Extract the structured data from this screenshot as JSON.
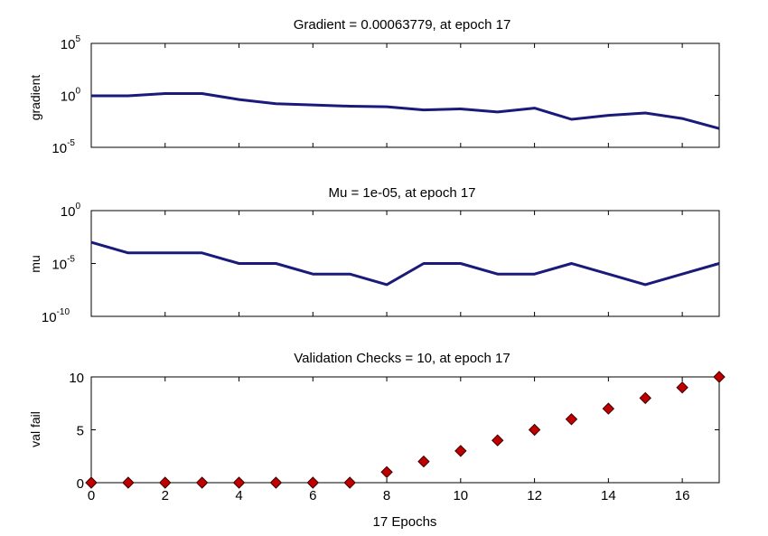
{
  "chart_data": [
    {
      "type": "line",
      "title": "Gradient = 0.00063779, at epoch 17",
      "ylabel": "gradient",
      "xlabel": "",
      "yscale": "log",
      "ylim": [
        1e-05,
        100000
      ],
      "xlim": [
        0,
        17
      ],
      "y_ticks": [
        {
          "base": "10",
          "exp": "5"
        },
        {
          "base": "10",
          "exp": "0"
        },
        {
          "base": "10",
          "exp": "-5"
        }
      ],
      "x_tick_labels_shown": false,
      "grid": false,
      "line_color": "#1a1a7a",
      "series": [
        {
          "x": [
            0,
            1,
            2,
            3,
            4,
            5,
            6,
            7,
            8,
            9,
            10,
            11,
            12,
            13,
            14,
            15,
            16,
            17
          ],
          "y": [
            0.9,
            0.9,
            1.5,
            1.5,
            0.4,
            0.16,
            0.12,
            0.09,
            0.08,
            0.04,
            0.05,
            0.025,
            0.06,
            0.005,
            0.012,
            0.02,
            0.006,
            0.00063779
          ]
        }
      ]
    },
    {
      "type": "line",
      "title": "Mu = 1e-05, at epoch 17",
      "ylabel": "mu",
      "xlabel": "",
      "yscale": "log",
      "ylim": [
        1e-10,
        1
      ],
      "xlim": [
        0,
        17
      ],
      "y_ticks": [
        {
          "base": "10",
          "exp": "0"
        },
        {
          "base": "10",
          "exp": "-5"
        },
        {
          "base": "10",
          "exp": "-10"
        }
      ],
      "x_tick_labels_shown": false,
      "grid": false,
      "line_color": "#1a1a7a",
      "series": [
        {
          "x": [
            0,
            1,
            2,
            3,
            4,
            5,
            6,
            7,
            8,
            9,
            10,
            11,
            12,
            13,
            14,
            15,
            16,
            17
          ],
          "y": [
            0.001,
            0.0001,
            0.0001,
            0.0001,
            1e-05,
            1e-05,
            1e-06,
            1e-06,
            1e-07,
            1e-05,
            1e-05,
            1e-06,
            1e-06,
            1e-05,
            1e-06,
            1e-07,
            1e-06,
            1e-05
          ]
        }
      ]
    },
    {
      "type": "scatter",
      "title": "Validation Checks = 10, at epoch 17",
      "ylabel": "val fail",
      "xlabel": "17 Epochs",
      "ylim": [
        0,
        10
      ],
      "xlim": [
        0,
        17
      ],
      "y_tick_values": [
        0,
        5,
        10
      ],
      "x_tick_values": [
        0,
        2,
        4,
        6,
        8,
        10,
        12,
        14,
        16
      ],
      "grid": false,
      "marker": "diamond",
      "marker_color": "#c00000",
      "series": [
        {
          "x": [
            0,
            1,
            2,
            3,
            4,
            5,
            6,
            7,
            8,
            9,
            10,
            11,
            12,
            13,
            14,
            15,
            16,
            17
          ],
          "y": [
            0,
            0,
            0,
            0,
            0,
            0,
            0,
            0,
            1,
            2,
            3,
            4,
            5,
            6,
            7,
            8,
            9,
            10
          ]
        }
      ]
    }
  ]
}
